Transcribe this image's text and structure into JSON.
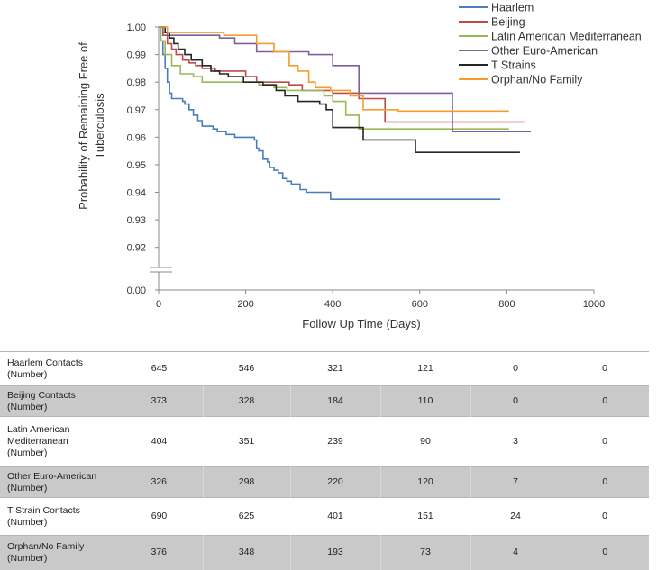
{
  "chart_data": {
    "type": "line",
    "subtype": "kaplan-meier step",
    "xlabel": "Follow Up Time  (Days)",
    "ylabel": "Probability of Remaining Free of Tuberculosis",
    "xlim": [
      0,
      1000
    ],
    "ylim": [
      0.915,
      1.0
    ],
    "y_axis_break": true,
    "x_ticks": [
      "0",
      "200",
      "400",
      "600",
      "800",
      "1000"
    ],
    "y_ticks": [
      "0.00",
      "0.92",
      "0.93",
      "0.94",
      "0.95",
      "0.96",
      "0.97",
      "0.98",
      "0.99",
      "1.00"
    ],
    "grid": false,
    "legend_position": "top-right",
    "series": [
      {
        "name": "Haarlem",
        "color": "#4a7ebb",
        "points": [
          [
            0,
            1.0
          ],
          [
            5,
            0.995
          ],
          [
            10,
            0.99
          ],
          [
            15,
            0.985
          ],
          [
            20,
            0.98
          ],
          [
            25,
            0.976
          ],
          [
            30,
            0.974
          ],
          [
            55,
            0.973
          ],
          [
            60,
            0.972
          ],
          [
            70,
            0.97
          ],
          [
            80,
            0.968
          ],
          [
            90,
            0.966
          ],
          [
            100,
            0.964
          ],
          [
            125,
            0.963
          ],
          [
            135,
            0.962
          ],
          [
            155,
            0.961
          ],
          [
            175,
            0.96
          ],
          [
            195,
            0.96
          ],
          [
            220,
            0.959
          ],
          [
            225,
            0.956
          ],
          [
            230,
            0.955
          ],
          [
            240,
            0.952
          ],
          [
            250,
            0.951
          ],
          [
            255,
            0.949
          ],
          [
            265,
            0.948
          ],
          [
            275,
            0.947
          ],
          [
            285,
            0.945
          ],
          [
            295,
            0.944
          ],
          [
            305,
            0.943
          ],
          [
            325,
            0.941
          ],
          [
            340,
            0.94
          ],
          [
            395,
            0.9375
          ],
          [
            785,
            0.9375
          ]
        ]
      },
      {
        "name": "Beijing",
        "color": "#be4b48",
        "points": [
          [
            0,
            1.0
          ],
          [
            10,
            0.997
          ],
          [
            20,
            0.994
          ],
          [
            30,
            0.992
          ],
          [
            40,
            0.99
          ],
          [
            55,
            0.988
          ],
          [
            70,
            0.987
          ],
          [
            85,
            0.986
          ],
          [
            100,
            0.985
          ],
          [
            130,
            0.984
          ],
          [
            200,
            0.982
          ],
          [
            225,
            0.98
          ],
          [
            300,
            0.979
          ],
          [
            330,
            0.977
          ],
          [
            400,
            0.976
          ],
          [
            460,
            0.974
          ],
          [
            520,
            0.9655
          ],
          [
            840,
            0.9655
          ]
        ]
      },
      {
        "name": "Latin American Mediterranean",
        "color": "#98b954",
        "points": [
          [
            0,
            1.0
          ],
          [
            5,
            0.995
          ],
          [
            15,
            0.99
          ],
          [
            30,
            0.986
          ],
          [
            50,
            0.983
          ],
          [
            80,
            0.982
          ],
          [
            100,
            0.98
          ],
          [
            200,
            0.98
          ],
          [
            230,
            0.979
          ],
          [
            265,
            0.978
          ],
          [
            295,
            0.977
          ],
          [
            380,
            0.975
          ],
          [
            400,
            0.973
          ],
          [
            430,
            0.968
          ],
          [
            460,
            0.963
          ],
          [
            805,
            0.963
          ]
        ]
      },
      {
        "name": "Other Euro-American",
        "color": "#7d60a0",
        "points": [
          [
            0,
            1.0
          ],
          [
            10,
            0.998
          ],
          [
            20,
            0.997
          ],
          [
            110,
            0.997
          ],
          [
            140,
            0.996
          ],
          [
            175,
            0.994
          ],
          [
            225,
            0.991
          ],
          [
            300,
            0.991
          ],
          [
            345,
            0.99
          ],
          [
            400,
            0.986
          ],
          [
            460,
            0.976
          ],
          [
            670,
            0.976
          ],
          [
            675,
            0.962
          ],
          [
            855,
            0.962
          ]
        ]
      },
      {
        "name": "T Strains",
        "color": "#262626",
        "points": [
          [
            0,
            1.0
          ],
          [
            15,
            0.998
          ],
          [
            25,
            0.996
          ],
          [
            35,
            0.994
          ],
          [
            45,
            0.992
          ],
          [
            60,
            0.99
          ],
          [
            75,
            0.988
          ],
          [
            100,
            0.986
          ],
          [
            120,
            0.984
          ],
          [
            140,
            0.983
          ],
          [
            160,
            0.982
          ],
          [
            195,
            0.98
          ],
          [
            240,
            0.979
          ],
          [
            270,
            0.977
          ],
          [
            290,
            0.975
          ],
          [
            320,
            0.973
          ],
          [
            370,
            0.972
          ],
          [
            385,
            0.97
          ],
          [
            400,
            0.9635
          ],
          [
            460,
            0.9635
          ],
          [
            470,
            0.959
          ],
          [
            585,
            0.959
          ],
          [
            590,
            0.9545
          ],
          [
            830,
            0.9545
          ]
        ]
      },
      {
        "name": "Orphan/No Family",
        "color": "#f59d2a",
        "points": [
          [
            0,
            1.0
          ],
          [
            20,
            0.998
          ],
          [
            110,
            0.998
          ],
          [
            150,
            0.997
          ],
          [
            225,
            0.994
          ],
          [
            265,
            0.991
          ],
          [
            300,
            0.986
          ],
          [
            320,
            0.984
          ],
          [
            345,
            0.98
          ],
          [
            360,
            0.978
          ],
          [
            395,
            0.977
          ],
          [
            440,
            0.975
          ],
          [
            470,
            0.97
          ],
          [
            550,
            0.9695
          ],
          [
            805,
            0.9695
          ]
        ]
      }
    ]
  },
  "table": {
    "rows": [
      {
        "label": [
          "Haarlem Contacts",
          "(Number)"
        ],
        "values": [
          "645",
          "546",
          "321",
          "121",
          "0",
          "0"
        ],
        "shaded": false
      },
      {
        "label": [
          "Beijing Contacts",
          "(Number)"
        ],
        "values": [
          "373",
          "328",
          "184",
          "110",
          "0",
          "0"
        ],
        "shaded": true
      },
      {
        "label": [
          "Latin American",
          "Mediterranean",
          "(Number)"
        ],
        "values": [
          "404",
          "351",
          "239",
          "90",
          "3",
          "0"
        ],
        "shaded": false
      },
      {
        "label": [
          "Other Euro-American",
          "(Number)"
        ],
        "values": [
          "326",
          "298",
          "220",
          "120",
          "7",
          "0"
        ],
        "shaded": true
      },
      {
        "label": [
          "T Strain Contacts",
          "(Number)"
        ],
        "values": [
          "690",
          "625",
          "401",
          "151",
          "24",
          "0"
        ],
        "shaded": false
      },
      {
        "label": [
          "Orphan/No Family",
          "(Number)"
        ],
        "values": [
          "376",
          "348",
          "193",
          "73",
          "4",
          "0"
        ],
        "shaded": true
      }
    ]
  }
}
